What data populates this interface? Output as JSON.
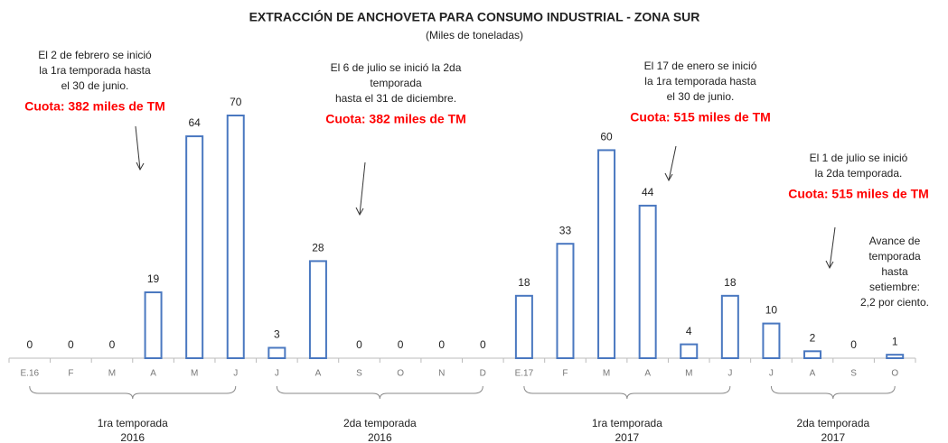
{
  "chart_data": {
    "type": "bar",
    "title": "EXTRACCIÓN DE ANCHOVETA PARA CONSUMO INDUSTRIAL - ZONA SUR",
    "subtitle": "(Miles de toneladas)",
    "categories": [
      "E.16",
      "F",
      "M",
      "A",
      "M",
      "J",
      "J",
      "A",
      "S",
      "O",
      "N",
      "D",
      "E.17",
      "F",
      "M",
      "A",
      "M",
      "J",
      "J",
      "A",
      "S",
      "O"
    ],
    "values": [
      0,
      0,
      0,
      19,
      64,
      70,
      3,
      28,
      0,
      0,
      0,
      0,
      18,
      33,
      60,
      44,
      4,
      18,
      10,
      2,
      0,
      1
    ],
    "color": "#4a78c0",
    "groups": [
      {
        "lines": [
          "1ra temporada",
          "2016"
        ]
      },
      {
        "lines": [
          "2da temporada",
          "2016"
        ]
      },
      {
        "lines": [
          "1ra temporada",
          "2017"
        ]
      },
      {
        "lines": [
          "2da temporada",
          "2017"
        ]
      }
    ],
    "annotations": [
      {
        "lines": [
          "El 2 de febrero se inició",
          "la 1ra temporada hasta",
          "el 30 de junio."
        ],
        "quota": "Cuota: 382 miles de TM"
      },
      {
        "lines": [
          "El 6 de julio se inició la 2da",
          "temporada",
          "hasta el 31 de diciembre."
        ],
        "quota": "Cuota: 382 miles de TM"
      },
      {
        "lines": [
          "El 17 de enero se inició",
          "la 1ra temporada hasta",
          "el 30 de junio."
        ],
        "quota": "Cuota: 515 miles de TM"
      },
      {
        "lines": [
          "El 1 de julio se inició",
          "la 2da temporada."
        ],
        "quota": "Cuota: 515 miles de TM"
      },
      {
        "lines": [
          "Avance de",
          "temporada",
          "hasta",
          "setiembre:",
          "2,2 por ciento."
        ]
      }
    ]
  }
}
